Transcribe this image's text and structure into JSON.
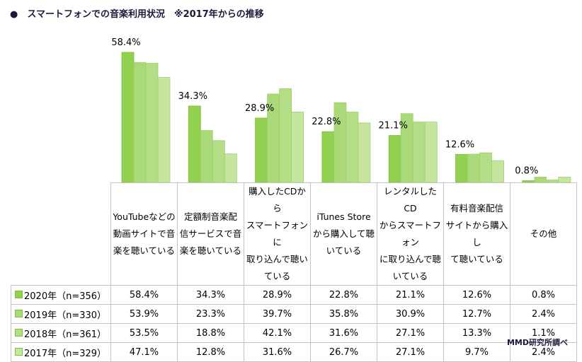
{
  "title": "●　スマートフォンでの音楽利用状況　※2017年からの推移",
  "source": "MMD研究所調べ",
  "chart_data": {
    "type": "bar",
    "categories": [
      "YouTubeなどの動画サイトで音楽を聴いている",
      "定額制音楽配信サービスで音楽を聴いている",
      "購入したCDからスマートフォンに取り込んで聴いている",
      "iTunes Storeから購入して聴いている",
      "レンタルしたCDからスマートフォンに取り込んで聴いている",
      "有料音楽配信サイトから購入して聴いている",
      "その他"
    ],
    "category_lines": [
      [
        "YouTubeなどの",
        "動画サイトで音",
        "楽を聴いている"
      ],
      [
        "定額制音楽配",
        "信サービスで音",
        "楽を聴いている"
      ],
      [
        "購入したCDから",
        "スマートフォンに",
        "取り込んで聴い",
        "ている"
      ],
      [
        "iTunes Store",
        "から購入して聴",
        "いている"
      ],
      [
        "レンタルしたCD",
        "からスマートフォン",
        "に取り込んで聴",
        "いている"
      ],
      [
        "有料音楽配信",
        "サイトから購入し",
        "て聴いている"
      ],
      [
        "その他"
      ]
    ],
    "series": [
      {
        "name": "2020年（n=356）",
        "color": "#92d050",
        "values": [
          58.4,
          34.3,
          28.9,
          22.8,
          21.1,
          12.6,
          0.8
        ],
        "labels": [
          "58.4%",
          "34.3%",
          "28.9%",
          "22.8%",
          "21.1%",
          "12.6%",
          "0.8%"
        ]
      },
      {
        "name": "2019年（n=330）",
        "color": "#a9d979",
        "values": [
          53.9,
          23.3,
          39.7,
          35.8,
          30.9,
          12.7,
          2.4
        ],
        "labels": [
          "53.9%",
          "23.3%",
          "39.7%",
          "35.8%",
          "30.9%",
          "12.7%",
          "2.4%"
        ]
      },
      {
        "name": "2018年（n=361）",
        "color": "#b3de85",
        "values": [
          53.5,
          18.8,
          42.1,
          31.6,
          27.1,
          13.3,
          1.1
        ],
        "labels": [
          "53.5%",
          "18.8%",
          "42.1%",
          "31.6%",
          "27.1%",
          "13.3%",
          "1.1%"
        ]
      },
      {
        "name": "2017年（n=329）",
        "color": "#c6e6a0",
        "values": [
          47.1,
          12.8,
          31.6,
          26.7,
          27.1,
          9.7,
          2.4
        ],
        "labels": [
          "47.1%",
          "12.8%",
          "31.6%",
          "26.7%",
          "27.1%",
          "9.7%",
          "2.4%"
        ]
      }
    ],
    "data_labels_series": "2020年（n=356）",
    "ylim": [
      0,
      60
    ],
    "grid": false,
    "legend": "table"
  }
}
